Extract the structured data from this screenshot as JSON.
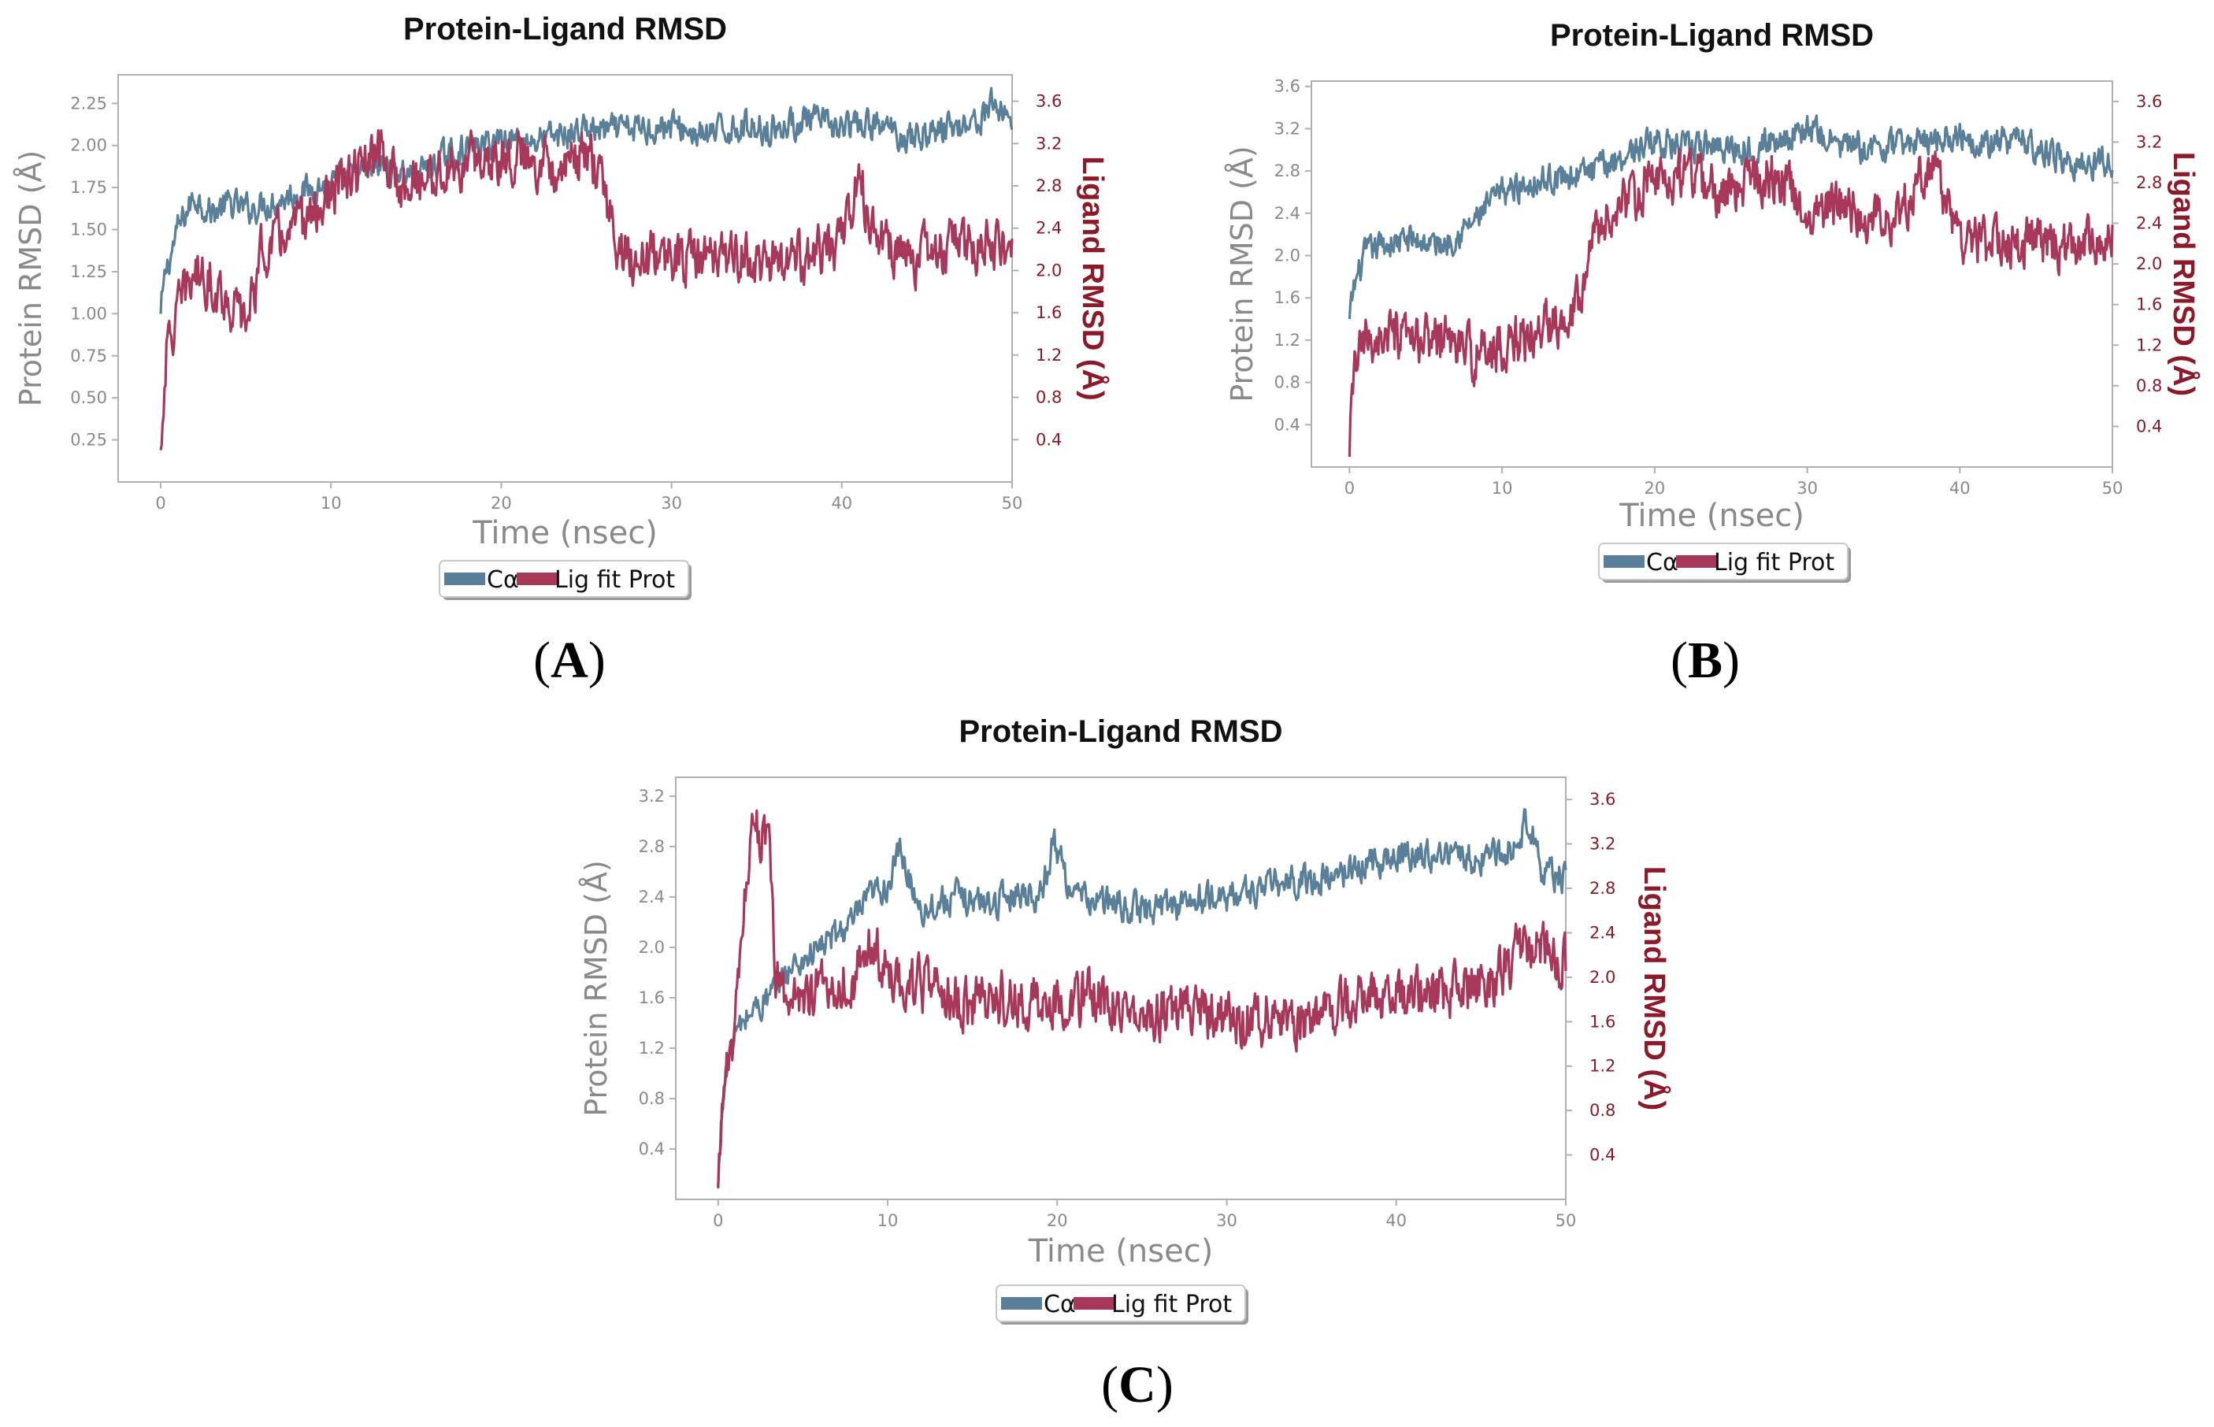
{
  "colors": {
    "protein": "#5a7f98",
    "ligand": "#a8385a",
    "right_axis": "#8b1a2a"
  },
  "chart_data": [
    {
      "type": "line",
      "panel": "A",
      "title": "Protein-Ligand RMSD",
      "xlabel": "Time (nsec)",
      "ylabel": "Protein RMSD (Å)",
      "ylabel_right": "Ligand RMSD (Å)",
      "xlim": [
        -2.5,
        50
      ],
      "ylim": [
        0,
        2.42
      ],
      "ylim_right": [
        0,
        3.85
      ],
      "xticks": [
        0,
        10,
        20,
        30,
        40,
        50
      ],
      "yticks": [
        0.25,
        0.5,
        0.75,
        1.0,
        1.25,
        1.5,
        1.75,
        2.0,
        2.25
      ],
      "ytick_labels": [
        "0.25",
        "0.50",
        "0.75",
        "1.00",
        "1.25",
        "1.50",
        "1.75",
        "2.00",
        "2.25"
      ],
      "yticks_right": [
        0.4,
        0.8,
        1.2,
        1.6,
        2.0,
        2.4,
        2.8,
        3.2,
        3.6
      ],
      "ytick_labels_right": [
        "0.4",
        "0.8",
        "1.2",
        "1.6",
        "2.0",
        "2.4",
        "2.8",
        "3.2",
        "3.6"
      ],
      "legend": [
        "Cα",
        "Lig fit Prot"
      ],
      "series": [
        {
          "name": "Cα",
          "axis": "left",
          "x": [
            0,
            0.3,
            1,
            2,
            3,
            4,
            5,
            7,
            9,
            11,
            13,
            15,
            17,
            19,
            20,
            22,
            24,
            25,
            26,
            28,
            30,
            32,
            34,
            36,
            38,
            40,
            42,
            44,
            46,
            48,
            49,
            50
          ],
          "y": [
            1.0,
            1.25,
            1.5,
            1.7,
            1.6,
            1.65,
            1.62,
            1.68,
            1.75,
            1.8,
            1.88,
            1.82,
            1.95,
            2.0,
            2.05,
            2.03,
            2.07,
            2.1,
            2.08,
            2.1,
            2.12,
            2.05,
            2.12,
            2.1,
            2.15,
            2.1,
            2.12,
            2.05,
            2.1,
            2.15,
            2.25,
            2.15
          ]
        },
        {
          "name": "Lig fit Prot",
          "axis": "right",
          "x": [
            0,
            0.3,
            1,
            2,
            3,
            4,
            5,
            6,
            8,
            10,
            12,
            13,
            14,
            16,
            18,
            20,
            22,
            24,
            25,
            26,
            27,
            28,
            30,
            32,
            34,
            36,
            38,
            40,
            41,
            42,
            44,
            46,
            48,
            50
          ],
          "y": [
            0.3,
            1.2,
            1.6,
            2.0,
            1.9,
            1.7,
            1.5,
            2.2,
            2.4,
            2.7,
            3.0,
            3.1,
            2.8,
            2.9,
            3.0,
            3.1,
            3.05,
            3.0,
            3.1,
            2.8,
            2.15,
            2.1,
            2.15,
            2.1,
            2.15,
            2.05,
            2.1,
            2.25,
            2.9,
            2.3,
            2.1,
            2.2,
            2.25,
            2.2
          ]
        }
      ]
    },
    {
      "type": "line",
      "panel": "B",
      "title": "Protein-Ligand RMSD",
      "xlabel": "Time (nsec)",
      "ylabel": "Protein RMSD (Å)",
      "ylabel_right": "Ligand RMSD (Å)",
      "xlim": [
        -2.5,
        50
      ],
      "ylim": [
        0,
        3.65
      ],
      "ylim_right": [
        0,
        3.8
      ],
      "xticks": [
        0,
        10,
        20,
        30,
        40,
        50
      ],
      "yticks": [
        0.4,
        0.8,
        1.2,
        1.6,
        2.0,
        2.4,
        2.8,
        3.2,
        3.6
      ],
      "ytick_labels": [
        "0.4",
        "0.8",
        "1.2",
        "1.6",
        "2.0",
        "2.4",
        "2.8",
        "3.2",
        "3.6"
      ],
      "yticks_right": [
        0.4,
        0.8,
        1.2,
        1.6,
        2.0,
        2.4,
        2.8,
        3.2,
        3.6
      ],
      "ytick_labels_right": [
        "0.4",
        "0.8",
        "1.2",
        "1.6",
        "2.0",
        "2.4",
        "2.8",
        "3.2",
        "3.6"
      ],
      "legend": [
        "Cα",
        "Lig fit Prot"
      ],
      "series": [
        {
          "name": "Cα",
          "axis": "left",
          "x": [
            0,
            0.3,
            1,
            2,
            4,
            6,
            8,
            10,
            12,
            14,
            16,
            18,
            20,
            22,
            24,
            26,
            28,
            30,
            32,
            34,
            36,
            38,
            40,
            42,
            44,
            46,
            48,
            50
          ],
          "y": [
            1.4,
            1.7,
            2.0,
            2.1,
            2.15,
            2.1,
            2.3,
            2.6,
            2.7,
            2.75,
            2.8,
            2.95,
            3.1,
            3.0,
            3.05,
            3.0,
            3.1,
            3.2,
            3.05,
            3.0,
            3.05,
            3.1,
            3.15,
            3.05,
            3.1,
            2.95,
            2.85,
            2.9
          ]
        },
        {
          "name": "Lig fit Prot",
          "axis": "right",
          "x": [
            0,
            0.3,
            1,
            2,
            4,
            6,
            8,
            10,
            12,
            14,
            15,
            16,
            18,
            20,
            22,
            24,
            26,
            28,
            30,
            32,
            34,
            36,
            38,
            40,
            42,
            44,
            46,
            48,
            50
          ],
          "y": [
            0.1,
            1.0,
            1.2,
            1.3,
            1.2,
            1.3,
            1.1,
            1.2,
            1.3,
            1.5,
            1.7,
            2.3,
            2.6,
            2.8,
            2.9,
            2.7,
            2.8,
            2.9,
            2.5,
            2.6,
            2.4,
            2.5,
            3.0,
            2.3,
            2.2,
            2.2,
            2.15,
            2.2,
            2.3
          ]
        }
      ]
    },
    {
      "type": "line",
      "panel": "C",
      "title": "Protein-Ligand RMSD",
      "xlabel": "Time (nsec)",
      "ylabel": "Protein RMSD (Å)",
      "ylabel_right": "Ligand RMSD (Å)",
      "xlim": [
        -2.5,
        50
      ],
      "ylim": [
        0,
        3.35
      ],
      "ylim_right": [
        0,
        3.8
      ],
      "xticks": [
        0,
        10,
        20,
        30,
        40,
        50
      ],
      "yticks": [
        0.4,
        0.8,
        1.2,
        1.6,
        2.0,
        2.4,
        2.8,
        3.2
      ],
      "ytick_labels": [
        "0.4",
        "0.8",
        "1.2",
        "1.6",
        "2.0",
        "2.4",
        "2.8",
        "3.2"
      ],
      "yticks_right": [
        0.4,
        0.8,
        1.2,
        1.6,
        2.0,
        2.4,
        2.8,
        3.2,
        3.6
      ],
      "ytick_labels_right": [
        "0.4",
        "0.8",
        "1.2",
        "1.6",
        "2.0",
        "2.4",
        "2.8",
        "3.2",
        "3.6"
      ],
      "legend": [
        "Cα",
        "Lig fit Prot"
      ],
      "series": [
        {
          "name": "Cα",
          "axis": "left",
          "x": [
            0,
            0.3,
            1,
            2,
            3,
            4,
            6,
            8,
            9,
            10,
            10.7,
            12,
            14,
            16,
            18,
            19,
            19.8,
            21,
            23,
            25,
            27,
            30,
            33,
            36,
            39,
            42,
            45,
            47,
            47.8,
            48.5,
            50
          ],
          "y": [
            0.1,
            0.9,
            1.3,
            1.5,
            1.6,
            1.8,
            2.0,
            2.2,
            2.4,
            2.5,
            2.75,
            2.3,
            2.4,
            2.35,
            2.45,
            2.4,
            2.85,
            2.4,
            2.35,
            2.3,
            2.35,
            2.4,
            2.5,
            2.55,
            2.7,
            2.75,
            2.7,
            2.8,
            3.05,
            2.6,
            2.55
          ]
        },
        {
          "name": "Lig fit Prot",
          "axis": "right",
          "x": [
            0,
            0.3,
            1,
            1.5,
            2,
            2.5,
            3,
            3.4,
            4,
            6,
            8,
            9,
            10,
            12,
            14,
            15,
            16,
            18,
            20,
            22,
            24,
            26,
            28,
            30,
            32,
            34,
            36,
            38,
            40,
            42,
            44,
            46,
            47.5,
            49,
            50
          ],
          "y": [
            0.1,
            1.0,
            1.5,
            2.5,
            3.5,
            3.3,
            3.1,
            2.0,
            1.8,
            1.9,
            2.0,
            2.3,
            2.0,
            1.9,
            1.8,
            1.7,
            1.85,
            1.75,
            1.8,
            1.8,
            1.75,
            1.7,
            1.7,
            1.6,
            1.65,
            1.6,
            1.7,
            1.8,
            1.8,
            1.85,
            1.9,
            2.0,
            2.3,
            2.2,
            2.1
          ]
        }
      ]
    }
  ]
}
